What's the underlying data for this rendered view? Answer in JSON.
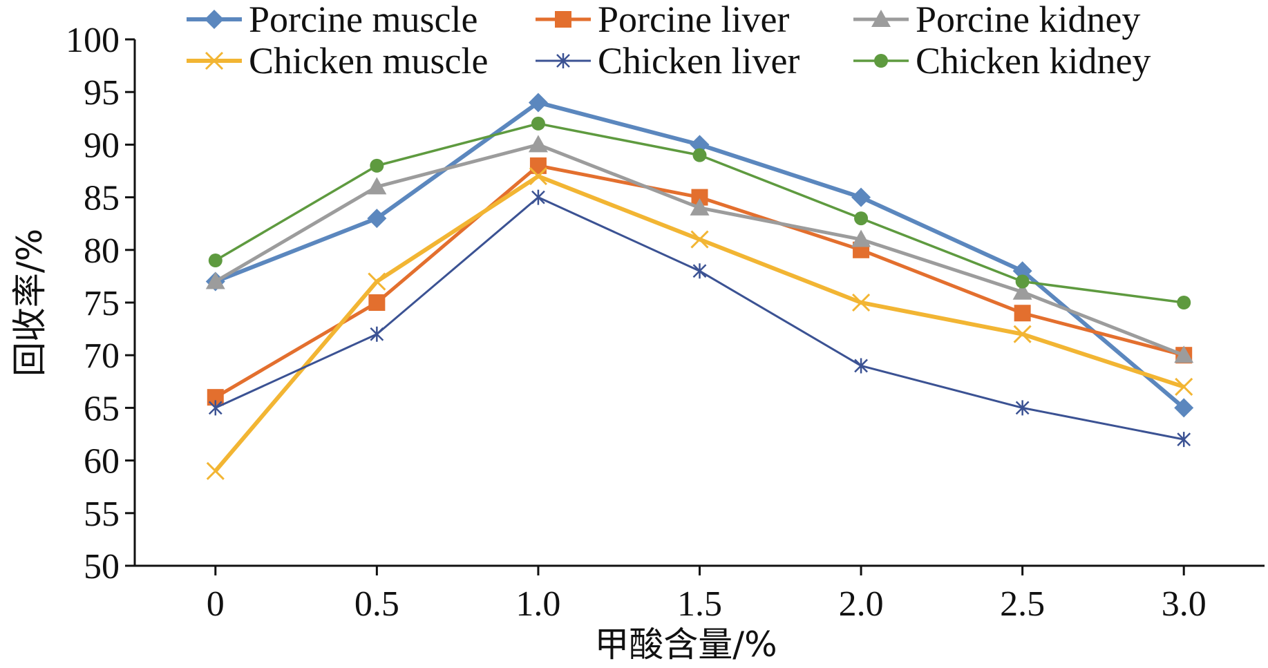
{
  "chart_data": {
    "type": "line",
    "title": "",
    "xlabel": "甲酸含量/%",
    "ylabel": "回收率/%",
    "x": [
      "0",
      "0.5",
      "1.0",
      "1.5",
      "2.0",
      "2.5",
      "3.0"
    ],
    "x_values": [
      0,
      0.5,
      1.0,
      1.5,
      2.0,
      2.5,
      3.0
    ],
    "xlim": [
      -0.25,
      3.25
    ],
    "ylim": [
      50,
      100
    ],
    "yticks": [
      "50",
      "55",
      "60",
      "65",
      "70",
      "75",
      "80",
      "85",
      "90",
      "95",
      "100"
    ],
    "ytick_values": [
      50,
      55,
      60,
      65,
      70,
      75,
      80,
      85,
      90,
      95,
      100
    ],
    "grid": false,
    "legend_position": "top",
    "series": [
      {
        "name": "Porcine muscle",
        "color": "#5B87BE",
        "marker": "diamond",
        "values": [
          77,
          83,
          94,
          90,
          85,
          78,
          65
        ]
      },
      {
        "name": "Porcine liver",
        "color": "#E36F2E",
        "marker": "square",
        "values": [
          66,
          75,
          88,
          85,
          80,
          74,
          70
        ]
      },
      {
        "name": "Porcine kidney",
        "color": "#9C9C9C",
        "marker": "triangle",
        "values": [
          77,
          86,
          90,
          84,
          81,
          76,
          70
        ]
      },
      {
        "name": "Chicken muscle",
        "color": "#F2B533",
        "marker": "x",
        "values": [
          59,
          77,
          87,
          81,
          75,
          72,
          67
        ]
      },
      {
        "name": "Chicken liver",
        "color": "#3B5293",
        "marker": "star",
        "values": [
          65,
          72,
          85,
          78,
          69,
          65,
          62
        ]
      },
      {
        "name": "Chicken kidney",
        "color": "#5E9A3F",
        "marker": "circle",
        "values": [
          79,
          88,
          92,
          89,
          83,
          77,
          75
        ]
      }
    ]
  }
}
